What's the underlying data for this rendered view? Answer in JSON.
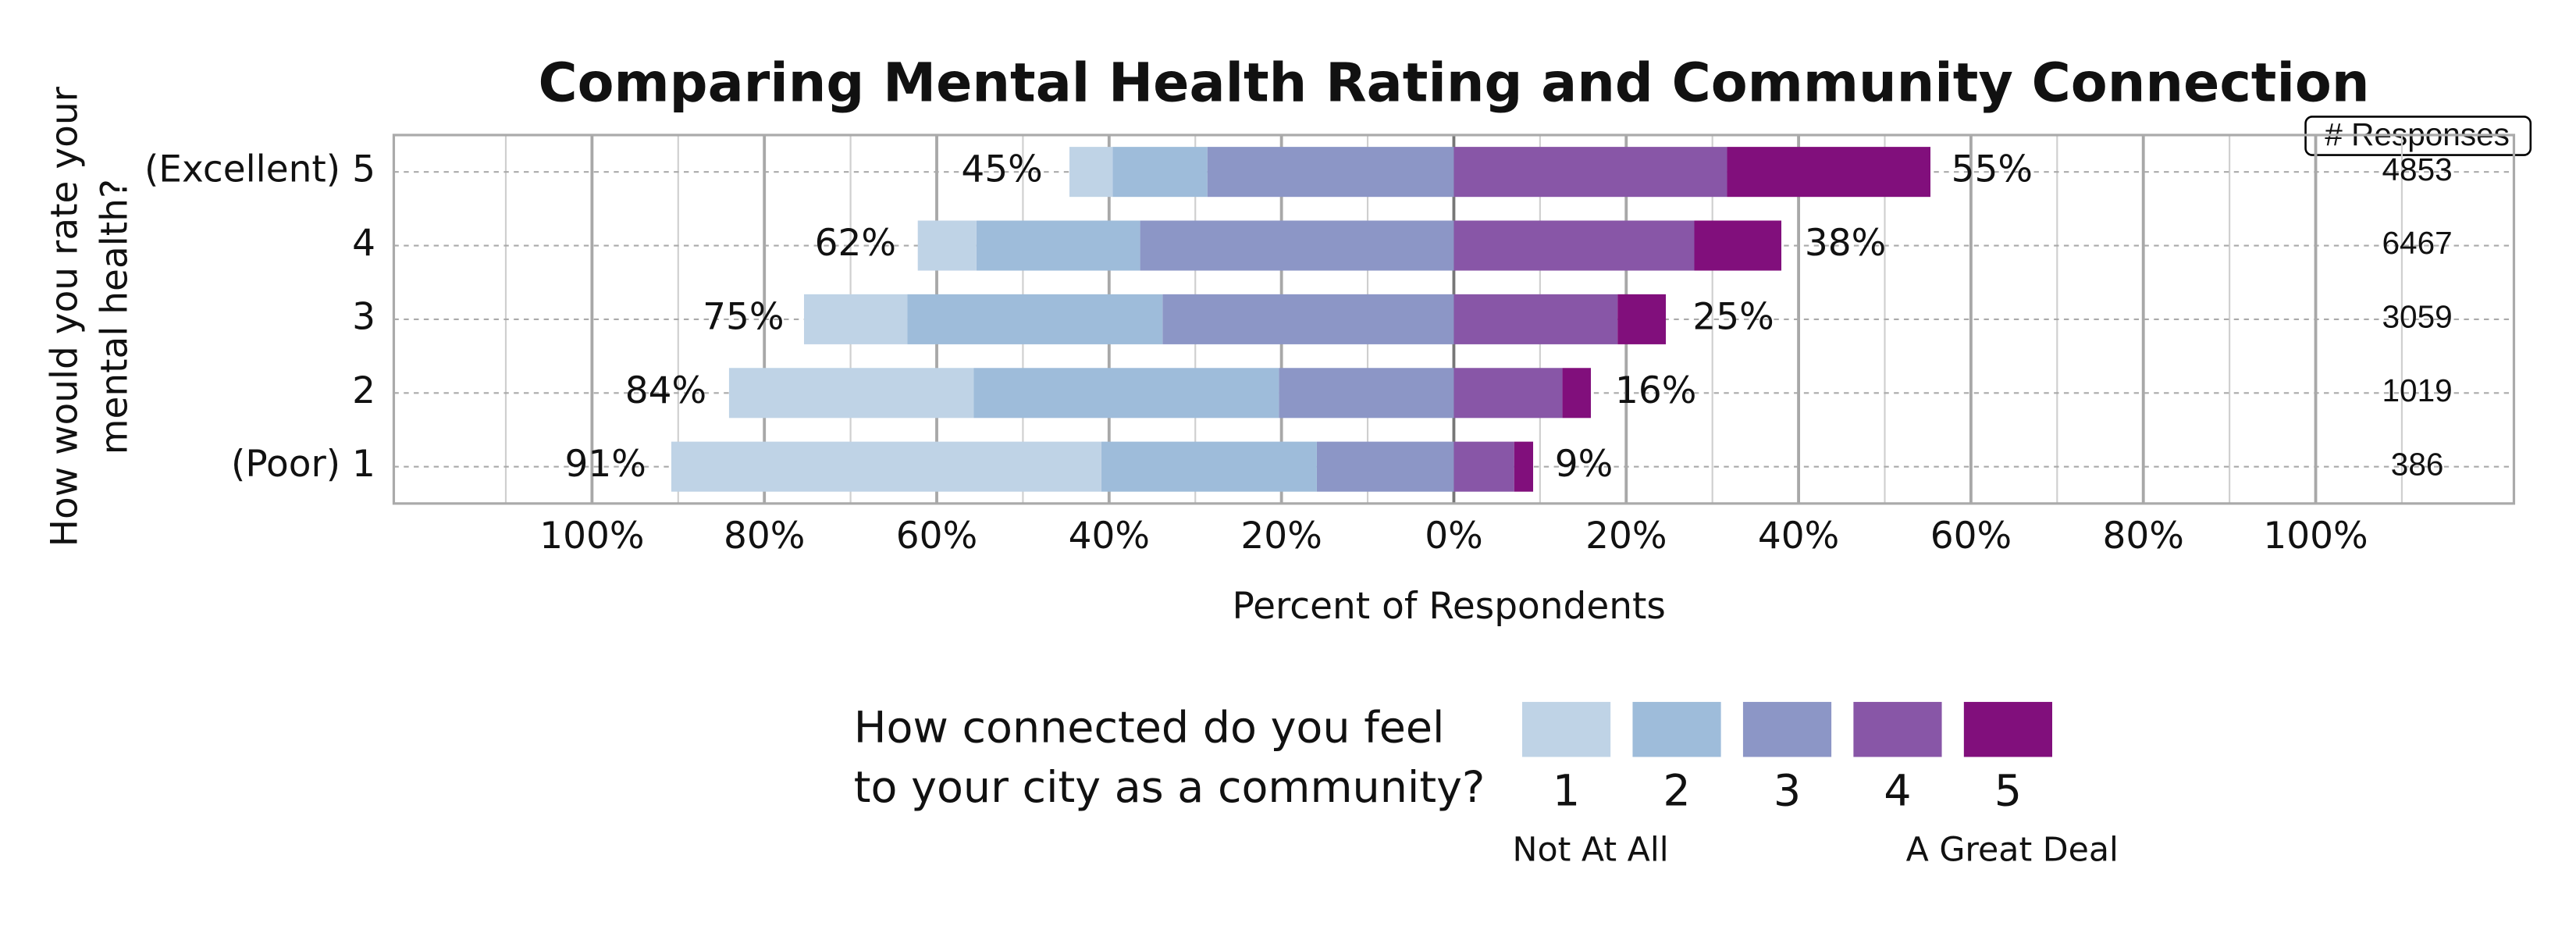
{
  "chart_data": {
    "type": "diverging-bar",
    "title": "Comparing Mental Health Rating and Community Connection",
    "x_label": "Percent of Respondents",
    "y_label": [
      "How would you rate your",
      "mental health?"
    ],
    "categories": [
      "(Excellent) 5",
      "4",
      "3",
      "2",
      "(Poor) 1"
    ],
    "series": [
      {
        "name": "1",
        "color": "#bfd3e6",
        "values": [
          5.0,
          6.8,
          12.0,
          28.4,
          49.9
        ]
      },
      {
        "name": "2",
        "color": "#9ebcda",
        "values": [
          11.0,
          19.0,
          29.6,
          35.4,
          25.0
        ]
      },
      {
        "name": "3",
        "color": "#8c96c6",
        "values": [
          28.6,
          36.4,
          33.8,
          20.3,
          15.9
        ]
      },
      {
        "name": "4",
        "color": "#8856a7",
        "values": [
          31.7,
          27.9,
          19.0,
          12.6,
          7.0
        ]
      },
      {
        "name": "5",
        "color": "#810f7c",
        "values": [
          23.6,
          10.1,
          5.6,
          3.3,
          2.2
        ]
      }
    ],
    "left_totals": {
      "values": [
        45,
        62,
        75,
        84,
        91
      ],
      "value_labels": [
        "45%",
        "62%",
        "75%",
        "84%",
        "91%"
      ]
    },
    "right_totals": {
      "values": [
        55,
        38,
        25,
        16,
        9
      ],
      "value_labels": [
        "55%",
        "38%",
        "25%",
        "16%",
        "9%"
      ]
    },
    "xlim": [
      -123,
      123
    ],
    "xticks": [
      {
        "value": -100,
        "label": "100%"
      },
      {
        "value": -80,
        "label": "80%"
      },
      {
        "value": -60,
        "label": "60%"
      },
      {
        "value": -40,
        "label": "40%"
      },
      {
        "value": -20,
        "label": "20%"
      },
      {
        "value": 0,
        "label": "0%"
      },
      {
        "value": 20,
        "label": "20%"
      },
      {
        "value": 40,
        "label": "40%"
      },
      {
        "value": 60,
        "label": "60%"
      },
      {
        "value": 80,
        "label": "80%"
      },
      {
        "value": 100,
        "label": "100%"
      }
    ],
    "xminorticks": [
      -110,
      -90,
      -70,
      -50,
      -30,
      -10,
      10,
      30,
      50,
      70,
      90,
      110
    ],
    "grid": true,
    "responses_header": "# Responses",
    "responses": [
      "4853",
      "6467",
      "3059",
      "1019",
      "386"
    ],
    "legend": {
      "title": [
        "How connected do you feel",
        "to your city as a community?"
      ],
      "low_label": "Not At All",
      "high_label": "A Great Deal"
    }
  }
}
